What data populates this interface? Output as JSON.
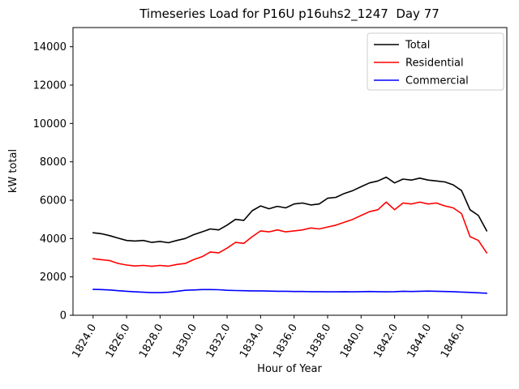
{
  "chart_data": {
    "type": "line",
    "title": "Timeseries Load for P16U p16uhs2_1247  Day 77",
    "xlabel": "Hour of Year",
    "ylabel": "kW total",
    "xlim": [
      1822.8,
      1848.7
    ],
    "ylim": [
      0,
      15000
    ],
    "grid": false,
    "legend_position": "upper right",
    "x_ticks": [
      1824,
      1826,
      1828,
      1830,
      1832,
      1834,
      1836,
      1838,
      1840,
      1842,
      1844,
      1846
    ],
    "x_tick_labels": [
      "1824.0",
      "1826.0",
      "1828.0",
      "1830.0",
      "1832.0",
      "1834.0",
      "1836.0",
      "1838.0",
      "1840.0",
      "1842.0",
      "1844.0",
      "1846.0"
    ],
    "y_ticks": [
      0,
      2000,
      4000,
      6000,
      8000,
      10000,
      12000,
      14000
    ],
    "y_tick_labels": [
      "0",
      "2000",
      "4000",
      "6000",
      "8000",
      "10000",
      "12000",
      "14000"
    ],
    "x": [
      1824.0,
      1824.5,
      1825.0,
      1825.5,
      1826.0,
      1826.5,
      1827.0,
      1827.5,
      1828.0,
      1828.5,
      1829.0,
      1829.5,
      1830.0,
      1830.5,
      1831.0,
      1831.5,
      1832.0,
      1832.5,
      1833.0,
      1833.5,
      1834.0,
      1834.5,
      1835.0,
      1835.5,
      1836.0,
      1836.5,
      1837.0,
      1837.5,
      1838.0,
      1838.5,
      1839.0,
      1839.5,
      1840.0,
      1840.5,
      1841.0,
      1841.5,
      1842.0,
      1842.5,
      1843.0,
      1843.5,
      1844.0,
      1844.5,
      1845.0,
      1845.5,
      1846.0,
      1846.5,
      1847.0,
      1847.5
    ],
    "series": [
      {
        "name": "Total",
        "color": "#000000",
        "values": [
          4300,
          4250,
          4150,
          4020,
          3900,
          3870,
          3900,
          3800,
          3850,
          3780,
          3900,
          4000,
          4200,
          4350,
          4500,
          4450,
          4700,
          5000,
          4950,
          5450,
          5700,
          5550,
          5680,
          5600,
          5800,
          5850,
          5750,
          5800,
          6100,
          6150,
          6350,
          6500,
          6700,
          6900,
          7000,
          7200,
          6900,
          7100,
          7050,
          7150,
          7050,
          7000,
          6950,
          6800,
          6500,
          5500,
          5200,
          4400
        ]
      },
      {
        "name": "Residential",
        "color": "#ff0000",
        "values": [
          2950,
          2900,
          2850,
          2700,
          2620,
          2570,
          2600,
          2550,
          2600,
          2560,
          2650,
          2700,
          2900,
          3050,
          3300,
          3250,
          3500,
          3800,
          3750,
          4100,
          4400,
          4350,
          4450,
          4350,
          4400,
          4450,
          4550,
          4500,
          4600,
          4700,
          4850,
          5000,
          5200,
          5400,
          5500,
          5900,
          5500,
          5850,
          5800,
          5900,
          5800,
          5850,
          5700,
          5600,
          5300,
          4100,
          3900,
          3250
        ]
      },
      {
        "name": "Commercial",
        "color": "#0000ff",
        "values": [
          1350,
          1340,
          1320,
          1280,
          1250,
          1220,
          1200,
          1180,
          1180,
          1200,
          1250,
          1300,
          1320,
          1340,
          1340,
          1330,
          1300,
          1290,
          1280,
          1270,
          1270,
          1260,
          1250,
          1250,
          1240,
          1240,
          1230,
          1230,
          1220,
          1220,
          1230,
          1220,
          1230,
          1240,
          1230,
          1220,
          1230,
          1250,
          1240,
          1250,
          1260,
          1250,
          1240,
          1230,
          1210,
          1190,
          1170,
          1150
        ]
      }
    ]
  }
}
